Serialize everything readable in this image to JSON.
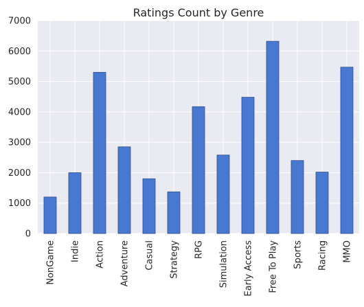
{
  "chart_data": {
    "type": "bar",
    "title": "Ratings Count by Genre",
    "xlabel": "",
    "ylabel": "",
    "categories": [
      "NonGame",
      "Indie",
      "Action",
      "Adventure",
      "Casual",
      "Strategy",
      "RPG",
      "Simulation",
      "Early Access",
      "Free To Play",
      "Sports",
      "Racing",
      "MMO"
    ],
    "values": [
      1200,
      2000,
      5300,
      2850,
      1800,
      1370,
      4170,
      2580,
      4480,
      6320,
      2400,
      2020,
      5470
    ],
    "ylim": [
      0,
      7000
    ],
    "yticks": [
      0,
      1000,
      2000,
      3000,
      4000,
      5000,
      6000,
      7000
    ],
    "grid": true,
    "legend": "none",
    "colors": {
      "bar_fill": "#4878cf",
      "bar_stroke": "#2f4f8f",
      "plot_background": "#eaeaf2",
      "grid": "#ffffff",
      "text": "#262626"
    }
  }
}
